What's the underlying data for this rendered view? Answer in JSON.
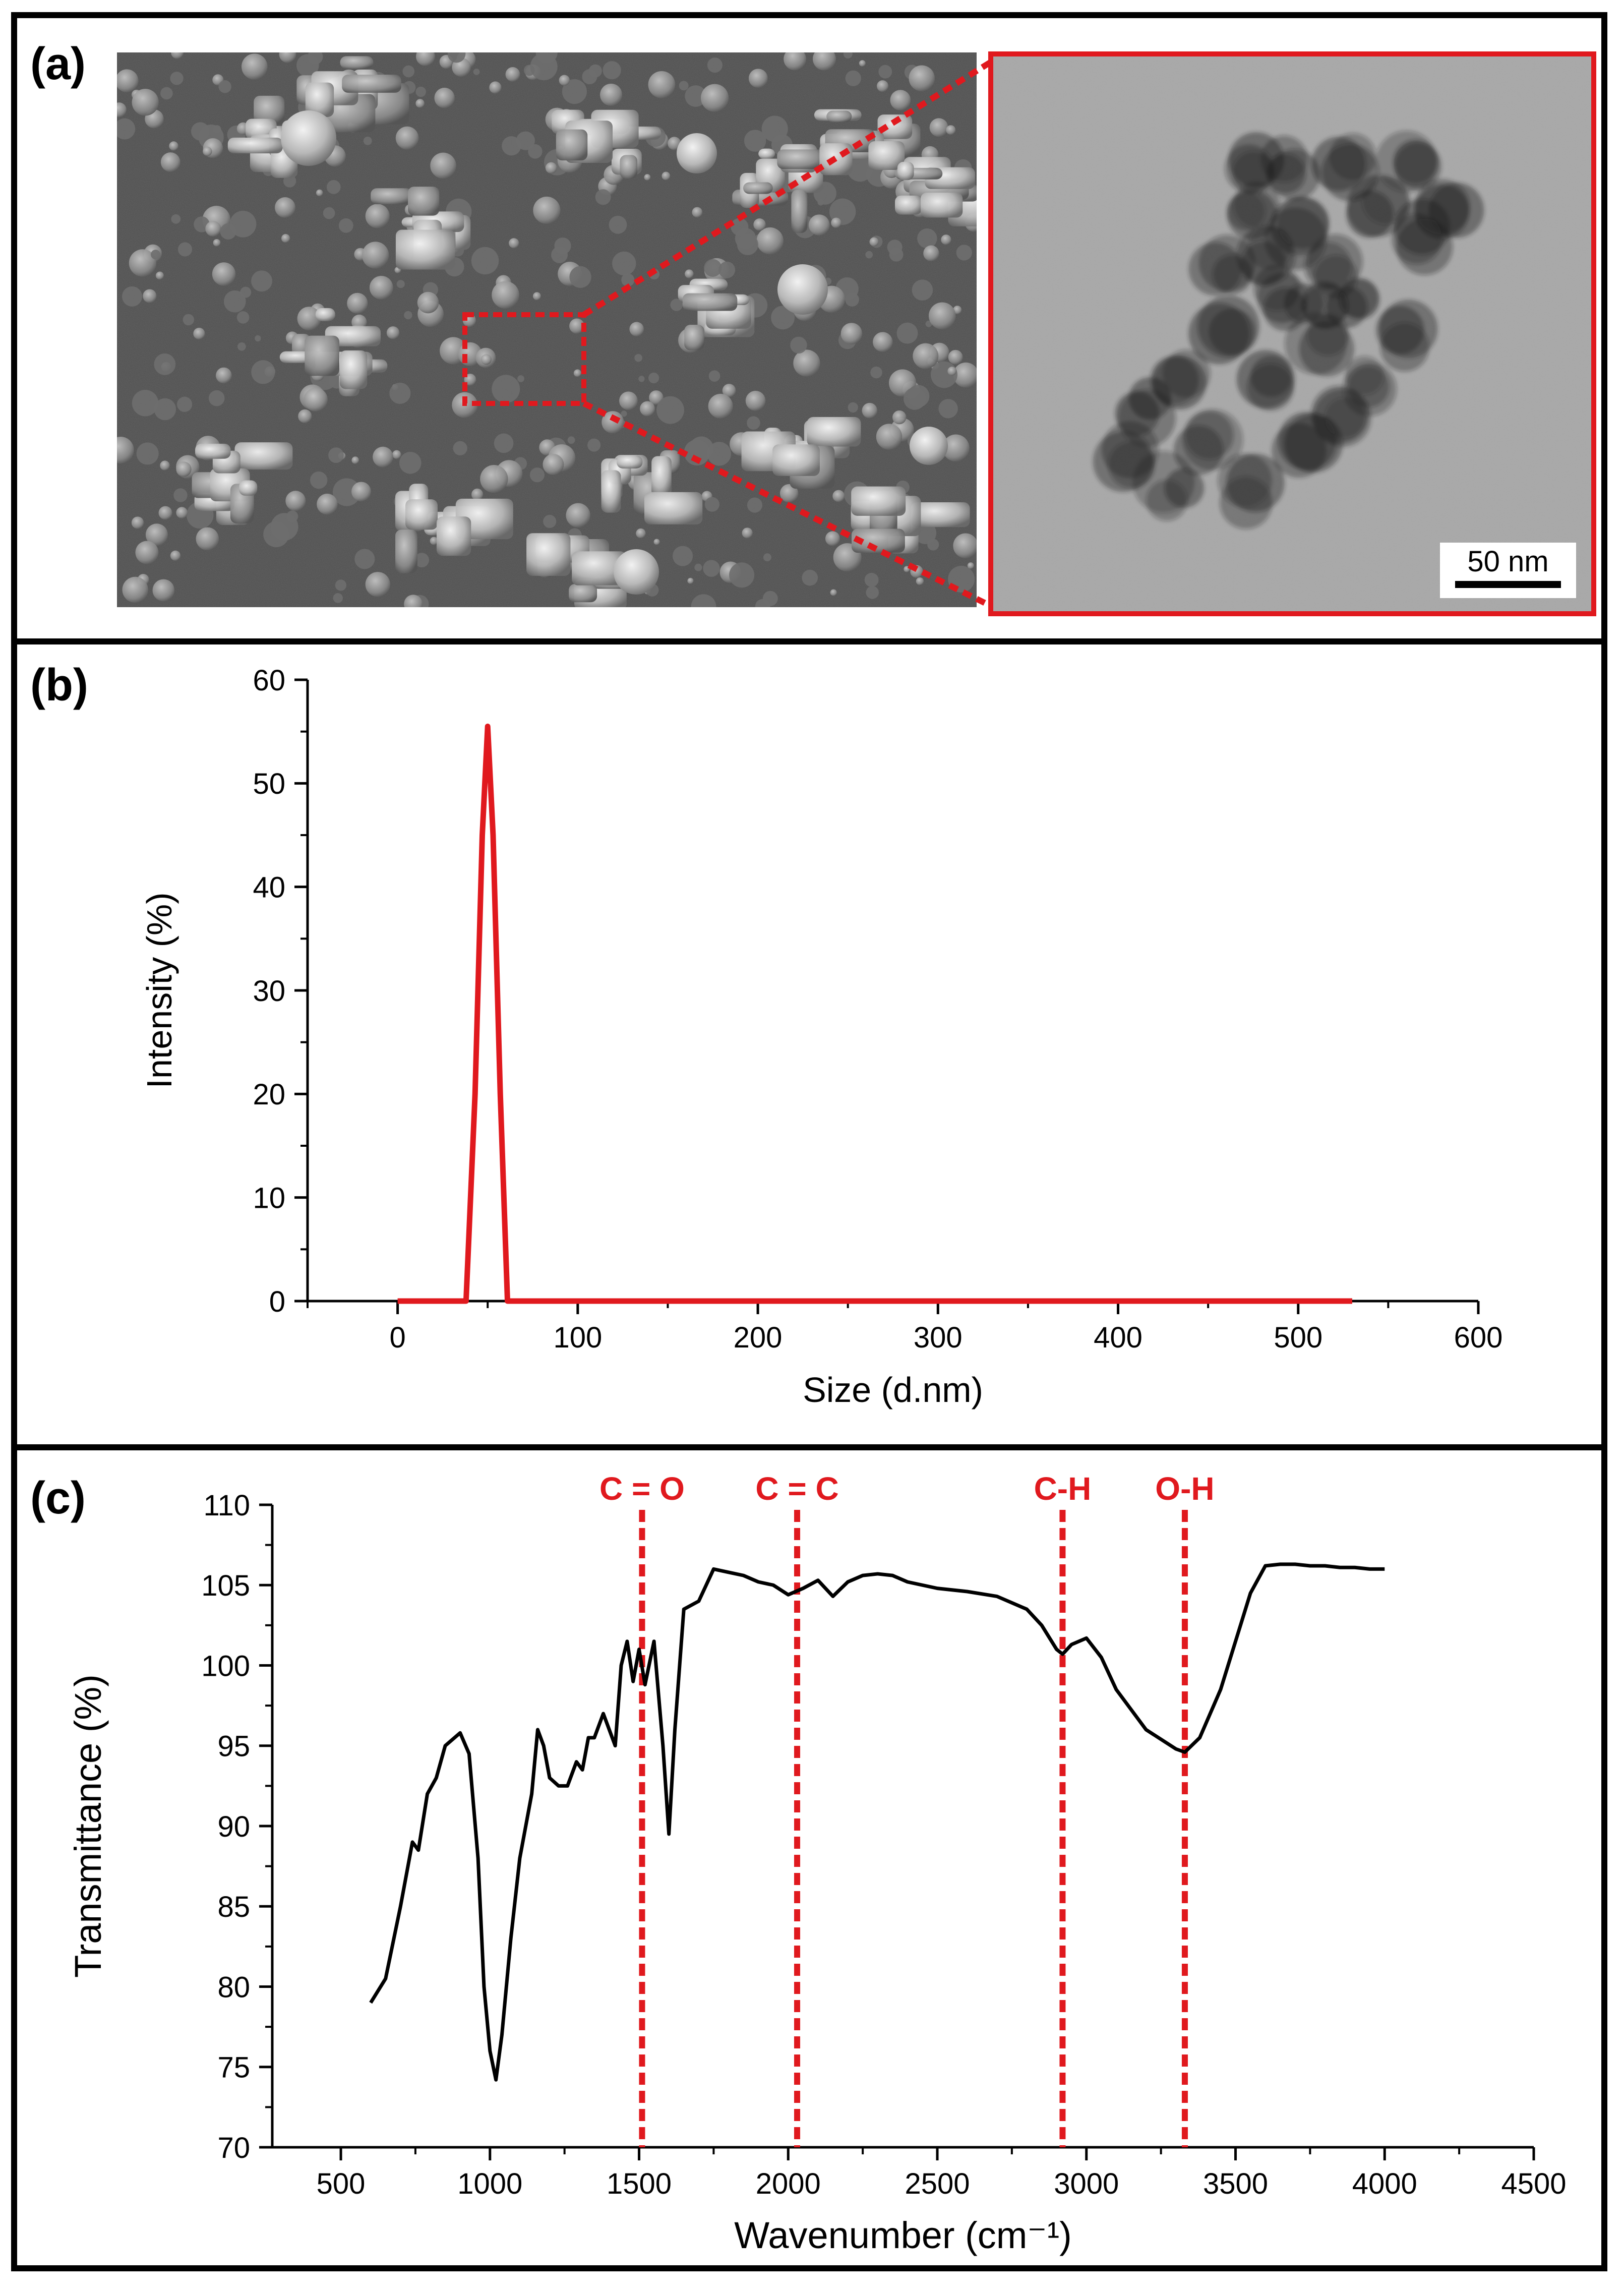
{
  "panels": {
    "a": {
      "label": "(a)",
      "scale_bar": "50 nm"
    },
    "b": {
      "label": "(b)"
    },
    "c": {
      "label": "(c)"
    }
  },
  "colors": {
    "accent_red": "#e0191e",
    "spectrum_black": "#000000"
  },
  "chart_data": [
    {
      "type": "line",
      "panel": "b",
      "xlabel": "Size (d.nm)",
      "ylabel": "Intensity (%)",
      "xlim": [
        -50,
        600
      ],
      "ylim": [
        0,
        60
      ],
      "xticks": [
        "0",
        "100",
        "200",
        "300",
        "400",
        "500",
        "600"
      ],
      "yticks": [
        "0",
        "10",
        "20",
        "30",
        "40",
        "50",
        "60"
      ],
      "series": [
        {
          "x": [
            0,
            38,
            43,
            47,
            50,
            53,
            57,
            61,
            100,
            200,
            300,
            400,
            500,
            530
          ],
          "y": [
            0,
            0,
            20,
            45,
            55.5,
            45,
            20,
            0,
            0,
            0,
            0,
            0,
            0,
            0
          ]
        }
      ],
      "grid": false
    },
    {
      "type": "line",
      "panel": "c",
      "xlabel": "Wavenumber (cm⁻¹)",
      "ylabel": "Transmittance (%)",
      "xlim": [
        270,
        4500
      ],
      "ylim": [
        70,
        110
      ],
      "xticks": [
        "500",
        "1000",
        "1500",
        "2000",
        "2500",
        "3000",
        "3500",
        "4000",
        "4500"
      ],
      "yticks": [
        "70",
        "75",
        "80",
        "85",
        "90",
        "95",
        "100",
        "105",
        "110"
      ],
      "annotations": [
        {
          "label": "C = O",
          "x": 1510
        },
        {
          "label": "C = C",
          "x": 2030
        },
        {
          "label": "C-H",
          "x": 2920
        },
        {
          "label": "O-H",
          "x": 3330
        }
      ],
      "series": [
        {
          "x": [
            600,
            650,
            700,
            740,
            760,
            790,
            820,
            850,
            900,
            930,
            960,
            980,
            1000,
            1020,
            1040,
            1070,
            1100,
            1140,
            1160,
            1180,
            1200,
            1230,
            1260,
            1290,
            1310,
            1330,
            1350,
            1380,
            1400,
            1420,
            1440,
            1460,
            1480,
            1500,
            1520,
            1550,
            1580,
            1600,
            1620,
            1650,
            1700,
            1750,
            1800,
            1850,
            1900,
            1950,
            2000,
            2050,
            2100,
            2150,
            2200,
            2250,
            2300,
            2350,
            2400,
            2500,
            2600,
            2700,
            2800,
            2850,
            2900,
            2920,
            2950,
            3000,
            3050,
            3100,
            3200,
            3300,
            3330,
            3380,
            3450,
            3500,
            3550,
            3600,
            3650,
            3700,
            3750,
            3800,
            3850,
            3900,
            3950,
            4000
          ],
          "y": [
            79,
            80.5,
            85,
            89,
            88.5,
            92,
            93,
            95,
            95.8,
            94.5,
            88,
            80,
            76,
            74.2,
            77,
            83,
            88,
            92,
            96,
            95,
            93,
            92.5,
            92.5,
            94,
            93.5,
            95.5,
            95.5,
            97,
            96,
            95,
            100,
            101.5,
            99,
            101,
            98.8,
            101.5,
            95,
            89.5,
            96,
            103.5,
            104,
            106,
            105.8,
            105.6,
            105.2,
            105,
            104.4,
            104.8,
            105.3,
            104.3,
            105.2,
            105.6,
            105.7,
            105.6,
            105.2,
            104.8,
            104.6,
            104.3,
            103.5,
            102.5,
            101,
            100.7,
            101.3,
            101.7,
            100.5,
            98.5,
            96,
            94.8,
            94.6,
            95.5,
            98.5,
            101.5,
            104.5,
            106.2,
            106.3,
            106.3,
            106.2,
            106.2,
            106.1,
            106.1,
            106.0,
            106.0
          ]
        }
      ],
      "grid": false
    }
  ]
}
